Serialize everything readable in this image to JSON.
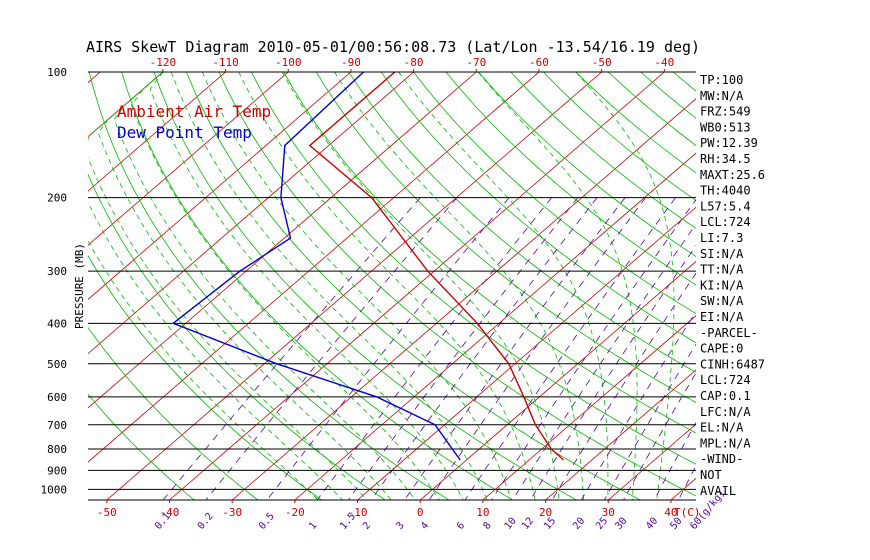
{
  "chart_data": {
    "type": "line",
    "title": "AIRS SkewT Diagram 2010-05-01/00:56:08.73 (Lat/Lon -13.54/16.19 deg)",
    "ylabel": "PRESSURE (MB)",
    "y_ticks": [
      "100",
      "200",
      "300",
      "400",
      "500",
      "600",
      "700",
      "800",
      "900",
      "1000"
    ],
    "y_tick_values": [
      100,
      200,
      300,
      400,
      500,
      600,
      700,
      800,
      900,
      1000
    ],
    "top_ticks": [
      "-120",
      "-110",
      "-100",
      "-90",
      "-80",
      "-70",
      "-60",
      "-50",
      "-40"
    ],
    "top_tick_values": [
      -120,
      -110,
      -100,
      -90,
      -80,
      -70,
      -60,
      -50,
      -40
    ],
    "bottom_ticks": [
      "-50",
      "-40",
      "-30",
      "-20",
      "-10",
      "0",
      "10",
      "20",
      "30",
      "40"
    ],
    "bottom_tick_values": [
      -50,
      -40,
      -30,
      -20,
      -10,
      0,
      10,
      20,
      30,
      40
    ],
    "bottom_axis_label": "T(C)",
    "mixing_ratio_labels": [
      "0.1",
      "0.2",
      "0.5",
      "1",
      "1.5",
      "2",
      "3",
      "4",
      "6",
      "8",
      "10",
      "12",
      "15",
      "20",
      "25",
      "30",
      "40",
      "50",
      "60(g/kg)"
    ],
    "mixing_ratio_values": [
      0.1,
      0.2,
      0.5,
      1,
      1.5,
      2,
      3,
      4,
      6,
      8,
      10,
      12,
      15,
      20,
      25,
      30,
      40,
      50,
      60
    ],
    "ylim": [
      1060,
      100
    ],
    "xlim_surface": [
      -53,
      44
    ],
    "skew_deg_per_decade": 77,
    "grid": true,
    "legend_position": "top-left",
    "colors": {
      "ambient": "#cc0000",
      "dewpoint": "#0000cc",
      "isotherm": "#cc0000",
      "dry_adiabat": "#00bb00",
      "moist_adiabat": "#00bb00",
      "mixing_ratio": "#5500aa",
      "isobar": "#000000",
      "text": "#000000"
    },
    "series": [
      {
        "name": "Ambient Air Temp",
        "color": "#cc0000",
        "points": [
          {
            "p": 100,
            "t": -83.0
          },
          {
            "p": 150,
            "t": -83.0
          },
          {
            "p": 200,
            "t": -63.5
          },
          {
            "p": 300,
            "t": -41.0
          },
          {
            "p": 400,
            "t": -23.5
          },
          {
            "p": 500,
            "t": -11.0
          },
          {
            "p": 600,
            "t": -2.5
          },
          {
            "p": 700,
            "t": 4.5
          },
          {
            "p": 800,
            "t": 11.5
          },
          {
            "p": 850,
            "t": 15.5
          }
        ]
      },
      {
        "name": "Dew Point Temp",
        "color": "#0000cc",
        "points": [
          {
            "p": 100,
            "t": -88.0
          },
          {
            "p": 150,
            "t": -87.0
          },
          {
            "p": 200,
            "t": -78.0
          },
          {
            "p": 250,
            "t": -69.0
          },
          {
            "p": 300,
            "t": -71.0
          },
          {
            "p": 400,
            "t": -72.0
          },
          {
            "p": 500,
            "t": -48.0
          },
          {
            "p": 600,
            "t": -26.0
          },
          {
            "p": 700,
            "t": -11.5
          },
          {
            "p": 850,
            "t": -1.0
          }
        ]
      }
    ],
    "indices": [
      "TP:100",
      "MW:N/A",
      "FRZ:549",
      "WB0:513",
      "PW:12.39",
      "RH:34.5",
      "MAXT:25.6",
      "TH:4040",
      "L57:5.4",
      "LCL:724",
      "LI:7.3",
      "SI:N/A",
      "TT:N/A",
      "KI:N/A",
      "SW:N/A",
      "EI:N/A",
      "-PARCEL-",
      "CAPE:0",
      "CINH:6487",
      "LCL:724",
      "CAP:0.1",
      "LFC:N/A",
      "EL:N/A",
      "MPL:N/A",
      "-WIND-",
      "NOT",
      "AVAIL"
    ]
  }
}
